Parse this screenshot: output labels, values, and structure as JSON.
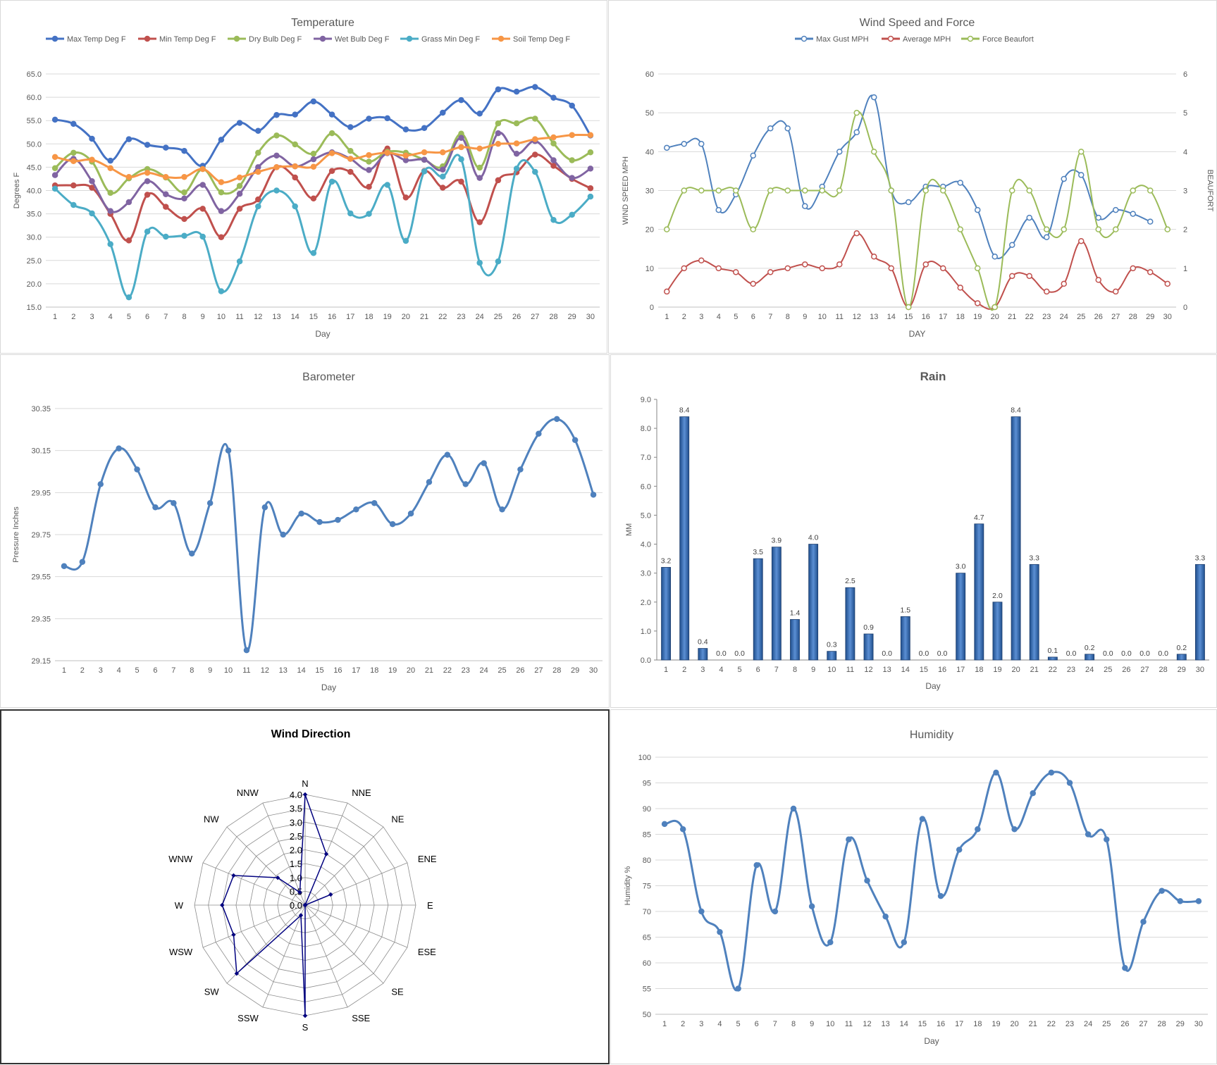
{
  "chart_data": [
    {
      "id": "temperature",
      "type": "line",
      "title": "Temperature",
      "xlabel": "Day",
      "ylabel": "Degrees F",
      "ylim": [
        15.0,
        65.0
      ],
      "yticks": [
        "15.0",
        "20.0",
        "25.0",
        "30.0",
        "35.0",
        "40.0",
        "45.0",
        "50.0",
        "55.0",
        "60.0",
        "65.0"
      ],
      "x": [
        1,
        2,
        3,
        4,
        5,
        6,
        7,
        8,
        9,
        10,
        11,
        12,
        13,
        14,
        15,
        16,
        17,
        18,
        19,
        20,
        21,
        22,
        23,
        24,
        25,
        26,
        27,
        28,
        29,
        30
      ],
      "legend_position": "top",
      "grid": true,
      "series": [
        {
          "name": "Max Temp Deg F",
          "color": "#4472c4",
          "values": [
            55.2,
            54.3,
            51.1,
            46.4,
            51.0,
            49.8,
            49.2,
            48.5,
            45.3,
            50.9,
            54.5,
            52.8,
            56.2,
            56.3,
            59.1,
            56.3,
            53.6,
            55.4,
            55.5,
            53.1,
            53.4,
            56.7,
            59.4,
            56.5,
            61.7,
            61.2,
            62.2,
            59.9,
            58.2,
            51.8
          ]
        },
        {
          "name": "Min Temp Deg F",
          "color": "#c0504d",
          "values": [
            41.1,
            41.1,
            40.6,
            35.0,
            29.3,
            39.1,
            36.5,
            33.9,
            36.1,
            30.0,
            36.1,
            38.1,
            45.0,
            42.8,
            38.3,
            44.2,
            44.0,
            40.8,
            49.0,
            38.5,
            44.2,
            40.6,
            41.9,
            33.2,
            42.2,
            43.9,
            47.7,
            45.3,
            42.5,
            40.5
          ]
        },
        {
          "name": "Dry Bulb Deg F",
          "color": "#9bbb59",
          "values": [
            44.8,
            48.1,
            46.2,
            39.5,
            42.6,
            44.6,
            42.8,
            39.6,
            44.6,
            39.6,
            41.0,
            48.1,
            51.8,
            49.9,
            47.9,
            52.3,
            48.5,
            46.2,
            48.3,
            48.1,
            46.6,
            45.2,
            52.2,
            44.9,
            54.4,
            54.4,
            55.4,
            50.1,
            46.5,
            48.2
          ]
        },
        {
          "name": "Wet Bulb Deg F",
          "color": "#8064a2",
          "values": [
            43.3,
            46.8,
            42.0,
            35.6,
            37.5,
            42.0,
            39.2,
            38.3,
            41.2,
            35.6,
            39.3,
            45.0,
            47.5,
            45.2,
            46.7,
            48.2,
            46.8,
            44.4,
            48.0,
            46.5,
            46.6,
            44.5,
            51.3,
            42.7,
            52.3,
            47.9,
            50.6,
            46.5,
            42.7,
            44.7
          ]
        },
        {
          "name": "Grass Min Deg F",
          "color": "#4bacc6",
          "values": [
            40.4,
            36.9,
            35.1,
            28.5,
            17.1,
            31.2,
            30.1,
            30.3,
            30.1,
            18.4,
            24.8,
            36.6,
            40.0,
            36.6,
            26.6,
            41.9,
            35.1,
            35.0,
            41.2,
            29.2,
            44.1,
            43.0,
            46.7,
            24.5,
            24.8,
            44.7,
            44.0,
            33.7,
            34.8,
            38.7
          ]
        },
        {
          "name": "Soil Temp Deg F",
          "color": "#f79646",
          "values": [
            47.2,
            46.3,
            46.6,
            44.8,
            42.9,
            43.8,
            42.9,
            42.9,
            44.6,
            41.8,
            42.8,
            44.0,
            45.0,
            45.2,
            45.1,
            48.0,
            46.8,
            47.6,
            48.1,
            47.5,
            48.2,
            48.2,
            49.3,
            49.0,
            50.0,
            50.1,
            51.0,
            51.4,
            51.9,
            51.9
          ]
        }
      ]
    },
    {
      "id": "wind",
      "type": "line",
      "title": "Wind Speed and Force",
      "xlabel": "DAY",
      "ylabel": "WIND SPEED MPH",
      "y2label": "BEAUFORT",
      "ylim": [
        0,
        60
      ],
      "y2lim": [
        0,
        6
      ],
      "yticks": [
        "0",
        "10",
        "20",
        "30",
        "40",
        "50",
        "60"
      ],
      "y2ticks": [
        "0",
        "1",
        "2",
        "3",
        "4",
        "5",
        "6"
      ],
      "x": [
        1,
        2,
        3,
        4,
        5,
        6,
        7,
        8,
        9,
        10,
        11,
        12,
        13,
        14,
        15,
        16,
        17,
        18,
        19,
        20,
        21,
        22,
        23,
        24,
        25,
        26,
        27,
        28,
        29,
        30
      ],
      "legend_position": "top",
      "grid": true,
      "series": [
        {
          "name": "Max Gust MPH",
          "color": "#4f81bd",
          "axis": "left",
          "values": [
            41,
            42,
            42,
            25,
            29,
            39,
            46,
            46,
            26,
            31,
            40,
            45,
            54,
            30,
            27,
            31,
            31,
            32,
            25,
            13,
            16,
            23,
            18,
            33,
            34,
            23,
            25,
            24,
            22,
            null
          ]
        },
        {
          "name": "Average MPH",
          "color": "#c0504d",
          "axis": "left",
          "values": [
            4,
            10,
            12,
            10,
            9,
            6,
            9,
            10,
            11,
            10,
            11,
            19,
            13,
            10,
            0,
            11,
            10,
            5,
            1,
            0,
            8,
            8,
            4,
            6,
            17,
            7,
            4,
            10,
            9,
            6
          ]
        },
        {
          "name": "Force Beaufort",
          "color": "#9bbb59",
          "axis": "right",
          "values": [
            2,
            3,
            3,
            3,
            3,
            2,
            3,
            3,
            3,
            3,
            3,
            5,
            4,
            3,
            0,
            3,
            3,
            2,
            1,
            0,
            3,
            3,
            2,
            2,
            4,
            2,
            2,
            3,
            3,
            2
          ]
        }
      ]
    },
    {
      "id": "barometer",
      "type": "line",
      "title": "Barometer",
      "xlabel": "Day",
      "ylabel": "Pressure Inches",
      "ylim": [
        29.15,
        30.35
      ],
      "yticks": [
        "29.15",
        "29.35",
        "29.55",
        "29.75",
        "29.95",
        "30.15",
        "30.35"
      ],
      "x": [
        1,
        2,
        3,
        4,
        5,
        6,
        7,
        8,
        9,
        10,
        11,
        12,
        13,
        14,
        15,
        16,
        17,
        18,
        19,
        20,
        21,
        22,
        23,
        24,
        25,
        26,
        27,
        28,
        29,
        30
      ],
      "grid": true,
      "series": [
        {
          "name": "",
          "color": "#4f81bd",
          "values": [
            29.6,
            29.62,
            29.99,
            30.16,
            30.06,
            29.88,
            29.9,
            29.66,
            29.9,
            30.15,
            29.2,
            29.88,
            29.75,
            29.85,
            29.81,
            29.82,
            29.87,
            29.9,
            29.8,
            29.85,
            30.0,
            30.13,
            29.99,
            30.09,
            29.87,
            30.06,
            30.23,
            30.3,
            30.2,
            29.94
          ]
        }
      ]
    },
    {
      "id": "rain",
      "type": "bar",
      "title": "Rain",
      "xlabel": "Day",
      "ylabel": "MM",
      "ylim": [
        0.0,
        9.0
      ],
      "yticks": [
        "0.0",
        "1.0",
        "2.0",
        "3.0",
        "4.0",
        "5.0",
        "6.0",
        "7.0",
        "8.0",
        "9.0"
      ],
      "categories": [
        1,
        2,
        3,
        4,
        5,
        6,
        7,
        8,
        9,
        10,
        11,
        12,
        13,
        14,
        15,
        16,
        17,
        18,
        19,
        20,
        21,
        22,
        23,
        24,
        25,
        26,
        27,
        28,
        29,
        30
      ],
      "values": [
        3.2,
        8.4,
        0.4,
        0.0,
        0.0,
        3.5,
        3.9,
        1.4,
        4.0,
        0.3,
        2.5,
        0.9,
        0.0,
        1.5,
        0.0,
        0.0,
        3.0,
        4.7,
        2.0,
        8.4,
        3.3,
        0.1,
        0.0,
        0.2,
        0.0,
        0.0,
        0.0,
        0.0,
        0.2,
        3.3
      ],
      "labels": [
        "3.2",
        "8.4",
        "0.4",
        "0.0",
        "0.0",
        "3.5",
        "3.9",
        "1.4",
        "4.0",
        "0.3",
        "2.5",
        "0.9",
        "0.0",
        "1.5",
        "0.0",
        "0.0",
        "3.0",
        "4.7",
        "2.0",
        "8.4",
        "3.3",
        "0.1",
        "0.0",
        "0.2",
        "0.0",
        "0.0",
        "0.0",
        "0.0",
        "0.2",
        "3.3"
      ],
      "bar_color": "#2e5f9e",
      "grid": false
    },
    {
      "id": "wind_direction",
      "type": "radar",
      "title": "Wind Direction",
      "rlim": [
        0.0,
        4.0
      ],
      "rticks": [
        "0.0",
        "0.5",
        "1.0",
        "1.5",
        "2.0",
        "2.5",
        "3.0",
        "3.5",
        "4.0"
      ],
      "categories": [
        "N",
        "NNE",
        "NE",
        "ENE",
        "E",
        "ESE",
        "SE",
        "SSE",
        "S",
        "SSW",
        "SW",
        "WSW",
        "W",
        "WNW",
        "NW",
        "NNW"
      ],
      "values": [
        4,
        2,
        0,
        1,
        0,
        0,
        0,
        0,
        4,
        0.4,
        3.5,
        2.8,
        3,
        2.8,
        1.4,
        0.5
      ],
      "color": "#00007f"
    },
    {
      "id": "humidity",
      "type": "line",
      "title": "Humidity",
      "xlabel": "Day",
      "ylabel": "Humidity %",
      "ylim": [
        50,
        100
      ],
      "yticks": [
        "50",
        "55",
        "60",
        "65",
        "70",
        "75",
        "80",
        "85",
        "90",
        "95",
        "100"
      ],
      "x": [
        1,
        2,
        3,
        4,
        5,
        6,
        7,
        8,
        9,
        10,
        11,
        12,
        13,
        14,
        15,
        16,
        17,
        18,
        19,
        20,
        21,
        22,
        23,
        24,
        25,
        26,
        27,
        28,
        29,
        30
      ],
      "grid": true,
      "series": [
        {
          "name": "",
          "color": "#4f81bd",
          "values": [
            87,
            86,
            70,
            66,
            55,
            79,
            70,
            90,
            71,
            64,
            84,
            76,
            69,
            64,
            88,
            73,
            82,
            86,
            97,
            86,
            93,
            97,
            95,
            85,
            84,
            59,
            68,
            74,
            72,
            72
          ]
        }
      ]
    }
  ]
}
